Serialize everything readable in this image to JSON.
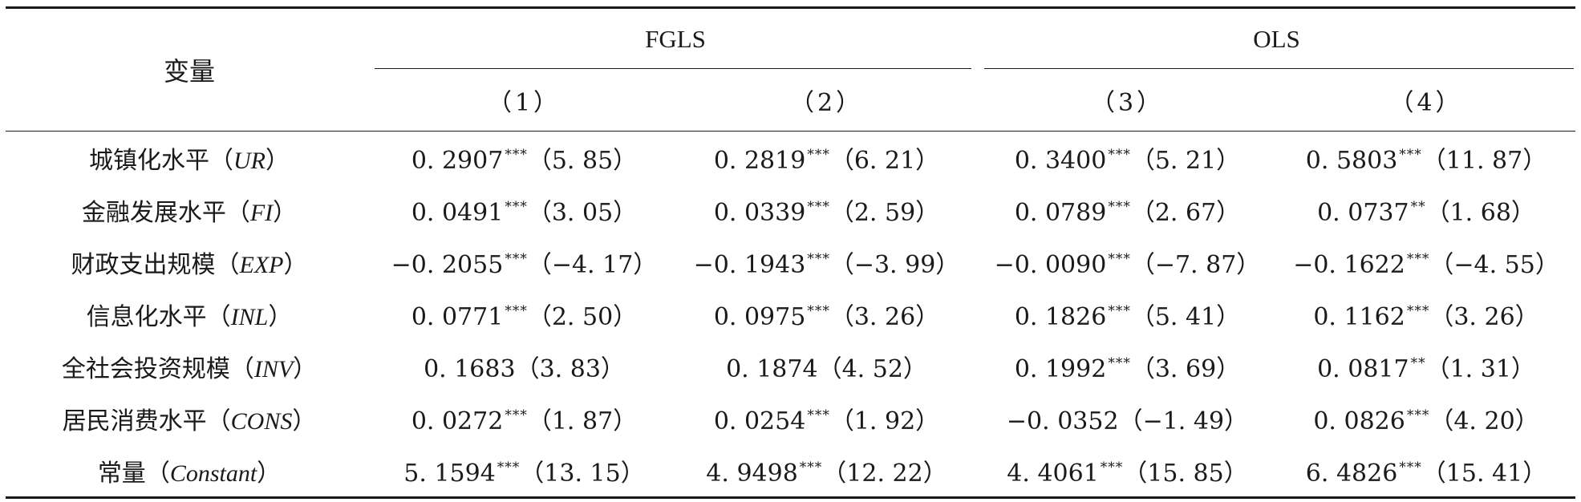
{
  "table": {
    "header": {
      "variable_label": "变量",
      "group_fgls": "FGLS",
      "group_ols": "OLS",
      "columns": [
        "（1）",
        "（2）",
        "（3）",
        "（4）"
      ]
    },
    "rows": [
      {
        "name": "城镇化水平",
        "abbr": "UR",
        "cells": [
          {
            "coef": "0. 2907",
            "stars": "***",
            "t": "（5. 85）"
          },
          {
            "coef": "0. 2819",
            "stars": "***",
            "t": "（6. 21）"
          },
          {
            "coef": "0. 3400",
            "stars": "***",
            "t": "（5. 21）"
          },
          {
            "coef": "0. 5803",
            "stars": "***",
            "t": "（11. 87）"
          }
        ]
      },
      {
        "name": "金融发展水平",
        "abbr": "FI",
        "cells": [
          {
            "coef": "0. 0491",
            "stars": "***",
            "t": "（3. 05）"
          },
          {
            "coef": "0. 0339",
            "stars": "***",
            "t": "（2. 59）"
          },
          {
            "coef": "0. 0789",
            "stars": "***",
            "t": "（2. 67）"
          },
          {
            "coef": "0. 0737",
            "stars": "**",
            "t": "（1. 68）"
          }
        ]
      },
      {
        "name": "财政支出规模",
        "abbr": "EXP",
        "cells": [
          {
            "coef": "−0. 2055",
            "stars": "***",
            "t": "（−4. 17）"
          },
          {
            "coef": "−0. 1943",
            "stars": "***",
            "t": "（−3. 99）"
          },
          {
            "coef": "−0. 0090",
            "stars": "***",
            "t": "（−7. 87）"
          },
          {
            "coef": "−0. 1622",
            "stars": "***",
            "t": "（−4. 55）"
          }
        ]
      },
      {
        "name": "信息化水平",
        "abbr": "INL",
        "cells": [
          {
            "coef": "0. 0771",
            "stars": "***",
            "t": "（2. 50）"
          },
          {
            "coef": "0. 0975",
            "stars": "***",
            "t": "（3. 26）"
          },
          {
            "coef": "0. 1826",
            "stars": "***",
            "t": "（5. 41）"
          },
          {
            "coef": "0. 1162",
            "stars": "***",
            "t": "（3. 26）"
          }
        ]
      },
      {
        "name": "全社会投资规模",
        "abbr": "INV",
        "cells": [
          {
            "coef": "0. 1683",
            "stars": "",
            "t": "（3. 83）"
          },
          {
            "coef": "0. 1874",
            "stars": "",
            "t": "（4. 52）"
          },
          {
            "coef": "0. 1992",
            "stars": "***",
            "t": "（3. 69）"
          },
          {
            "coef": "0. 0817",
            "stars": "**",
            "t": "（1. 31）"
          }
        ]
      },
      {
        "name": "居民消费水平",
        "abbr": "CONS",
        "cells": [
          {
            "coef": "0. 0272",
            "stars": "***",
            "t": "（1. 87）"
          },
          {
            "coef": "0. 0254",
            "stars": "***",
            "t": "（1. 92）"
          },
          {
            "coef": "−0. 0352",
            "stars": "",
            "t": "（−1. 49）"
          },
          {
            "coef": "0. 0826",
            "stars": "***",
            "t": "（4. 20）"
          }
        ]
      },
      {
        "name": "常量",
        "abbr": "Constant",
        "cells": [
          {
            "coef": "5. 1594",
            "stars": "***",
            "t": "（13. 15）"
          },
          {
            "coef": "4. 9498",
            "stars": "***",
            "t": "（12. 22）"
          },
          {
            "coef": "4. 4061",
            "stars": "***",
            "t": "（15. 85）"
          },
          {
            "coef": "6. 4826",
            "stars": "***",
            "t": "（15. 41）"
          }
        ]
      }
    ]
  }
}
